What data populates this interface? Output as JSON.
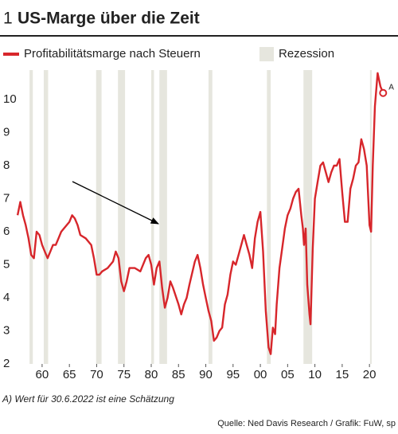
{
  "chart_data": {
    "type": "line",
    "number": "1",
    "title": "US-Marge über die Zeit",
    "recession_label": "Rezession",
    "recession_color": "#e6e6de",
    "marker_label": "A",
    "footnote": "A) Wert für 30.6.2022 ist eine Schätzung",
    "source": "Quelle: Ned Davis Research / Grafik: FuW, sp",
    "x": [
      1955.5,
      1956,
      1956.5,
      1957,
      1957.5,
      1958,
      1958.5,
      1959,
      1959.5,
      1960,
      1960.5,
      1961,
      1961.5,
      1962,
      1962.5,
      1963,
      1963.5,
      1964,
      1965,
      1965.5,
      1966,
      1966.5,
      1967,
      1968,
      1969,
      1969.5,
      1970,
      1970.5,
      1971,
      1972,
      1973,
      1973.5,
      1974,
      1974.5,
      1975,
      1975.5,
      1976,
      1977,
      1978,
      1979,
      1979.5,
      1980,
      1980.5,
      1981,
      1981.5,
      1982,
      1982.5,
      1983,
      1983.5,
      1984,
      1985,
      1985.5,
      1986,
      1986.5,
      1987,
      1988,
      1988.5,
      1989,
      1989.5,
      1990,
      1990.5,
      1991,
      1991.5,
      1992,
      1992.5,
      1993,
      1993.5,
      1994,
      1994.5,
      1995,
      1995.5,
      1996,
      1997,
      1997.5,
      1998,
      1998.5,
      1999,
      1999.5,
      2000,
      2000.5,
      2001,
      2001.5,
      2001.9,
      2002.3,
      2002.7,
      2003,
      2003.5,
      2004,
      2004.5,
      2005,
      2005.5,
      2006,
      2006.5,
      2007,
      2007.5,
      2007.8,
      2008,
      2008.3,
      2008.6,
      2009,
      2009.2,
      2009.6,
      2010,
      2010.5,
      2011,
      2011.5,
      2012,
      2012.5,
      2013,
      2013.5,
      2014,
      2014.5,
      2015,
      2015.5,
      2016,
      2016.5,
      2017,
      2017.5,
      2018,
      2018.5,
      2019,
      2019.5,
      2020,
      2020.3,
      2020.6,
      2021,
      2021.5,
      2022,
      2022.5
    ],
    "series": [
      {
        "name": "Profitabilitätsmarge nach Steuern",
        "color": "#d7262b",
        "values": [
          6.5,
          6.9,
          6.5,
          6.2,
          5.8,
          5.3,
          5.2,
          6.0,
          5.9,
          5.6,
          5.4,
          5.2,
          5.4,
          5.6,
          5.6,
          5.8,
          6.0,
          6.1,
          6.3,
          6.5,
          6.4,
          6.2,
          5.9,
          5.8,
          5.6,
          5.2,
          4.7,
          4.7,
          4.8,
          4.9,
          5.1,
          5.4,
          5.2,
          4.5,
          4.2,
          4.5,
          4.9,
          4.9,
          4.8,
          5.2,
          5.3,
          5.0,
          4.4,
          4.9,
          5.1,
          4.3,
          3.7,
          4.0,
          4.5,
          4.3,
          3.8,
          3.5,
          3.8,
          4.0,
          4.4,
          5.1,
          5.3,
          4.9,
          4.4,
          4.0,
          3.6,
          3.3,
          2.7,
          2.8,
          3.0,
          3.1,
          3.8,
          4.1,
          4.7,
          5.1,
          5.0,
          5.3,
          5.9,
          5.6,
          5.3,
          4.9,
          5.8,
          6.3,
          6.6,
          5.4,
          3.6,
          2.5,
          2.3,
          3.1,
          2.9,
          3.8,
          4.9,
          5.5,
          6.1,
          6.5,
          6.7,
          7.0,
          7.2,
          7.3,
          6.5,
          6.1,
          5.6,
          6.1,
          4.4,
          3.5,
          3.2,
          5.5,
          7.0,
          7.5,
          8.0,
          8.1,
          7.8,
          7.5,
          7.8,
          8.0,
          8.0,
          8.2,
          7.2,
          6.3,
          6.3,
          7.3,
          7.6,
          8.0,
          8.1,
          8.8,
          8.5,
          8.0,
          6.2,
          6.0,
          8.0,
          9.8,
          10.8,
          10.4,
          10.2
        ]
      }
    ],
    "recessions": [
      [
        1957.7,
        1958.3
      ],
      [
        1960.3,
        1961.1
      ],
      [
        1969.9,
        1970.9
      ],
      [
        1973.9,
        1975.2
      ],
      [
        1980.0,
        1980.5
      ],
      [
        1981.5,
        1982.9
      ],
      [
        1990.5,
        1991.2
      ],
      [
        2001.2,
        2001.9
      ],
      [
        2007.9,
        2009.5
      ],
      [
        2020.1,
        2020.4
      ]
    ],
    "xlim": [
      1955.2,
      2024.5
    ],
    "xticks": [
      {
        "value": 1960,
        "label": "60"
      },
      {
        "value": 1965,
        "label": "65"
      },
      {
        "value": 1970,
        "label": "70"
      },
      {
        "value": 1975,
        "label": "75"
      },
      {
        "value": 1980,
        "label": "80"
      },
      {
        "value": 1985,
        "label": "85"
      },
      {
        "value": 1990,
        "label": "90"
      },
      {
        "value": 1995,
        "label": "95"
      },
      {
        "value": 2000,
        "label": "00"
      },
      {
        "value": 2005,
        "label": "05"
      },
      {
        "value": 2010,
        "label": "10"
      },
      {
        "value": 2015,
        "label": "15"
      },
      {
        "value": 2020,
        "label": "20"
      }
    ],
    "ylim": [
      2,
      11
    ],
    "yticks": [
      2,
      3,
      4,
      5,
      6,
      7,
      8,
      9,
      10
    ]
  }
}
